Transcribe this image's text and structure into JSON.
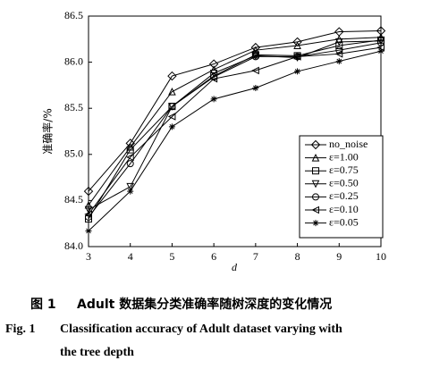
{
  "chart_data": {
    "type": "line",
    "x_label": "d",
    "y_label": "准确率/%",
    "x": [
      3,
      4,
      5,
      6,
      7,
      8,
      9,
      10
    ],
    "xlim": [
      3,
      10
    ],
    "xticks": [
      3,
      4,
      5,
      6,
      7,
      8,
      9,
      10
    ],
    "ylim": [
      84,
      86.5
    ],
    "yticks": [
      {
        "value": 84,
        "label": "84.0"
      },
      84.5,
      {
        "value": 85,
        "label": "85.0"
      },
      85.5,
      {
        "value": 86,
        "label": "86.0"
      },
      86.5
    ],
    "legend_position": "lower right",
    "series": [
      {
        "name": "no_noise",
        "color": "#000000",
        "marker": "diamond",
        "values": [
          84.6,
          85.12,
          85.85,
          85.98,
          86.16,
          86.22,
          86.33,
          86.34
        ]
      },
      {
        "name": "ε=1.00",
        "color": "#000000",
        "marker": "triangle-up",
        "values": [
          84.45,
          85.08,
          85.68,
          85.92,
          86.13,
          86.18,
          86.25,
          86.27
        ]
      },
      {
        "name": "ε=0.75",
        "color": "#000000",
        "marker": "square",
        "values": [
          84.3,
          85.05,
          85.52,
          85.85,
          86.08,
          86.07,
          86.18,
          86.24
        ]
      },
      {
        "name": "ε=0.50",
        "color": "#000000",
        "marker": "triangle-down",
        "values": [
          84.4,
          84.65,
          85.52,
          85.88,
          86.07,
          86.05,
          86.22,
          86.23
        ]
      },
      {
        "name": "ε=0.25",
        "color": "#000000",
        "marker": "circle",
        "values": [
          84.32,
          84.9,
          85.52,
          85.84,
          86.06,
          86.06,
          86.13,
          86.21
        ]
      },
      {
        "name": "ε=0.10",
        "color": "#000000",
        "marker": "triangle-left",
        "values": [
          84.35,
          84.97,
          85.41,
          85.82,
          85.91,
          86.06,
          86.09,
          86.16
        ]
      },
      {
        "name": "ε=0.05",
        "color": "#000000",
        "marker": "star",
        "values": [
          84.17,
          84.6,
          85.3,
          85.6,
          85.72,
          85.9,
          86.01,
          86.12
        ]
      }
    ]
  },
  "caption": {
    "cn_label": "图 1",
    "cn_text": "Adult 数据集分类准确率随树深度的变化情况",
    "en_label": "Fig. 1",
    "en_lines": [
      "Classification accuracy of Adult dataset varying with",
      "the tree depth"
    ]
  }
}
